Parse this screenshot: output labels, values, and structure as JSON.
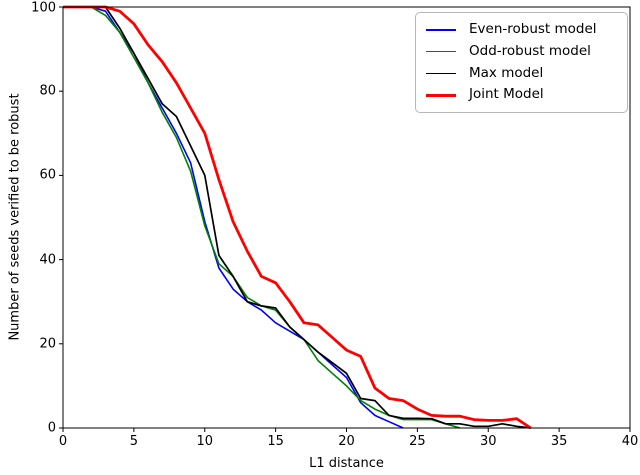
{
  "chart_data": {
    "type": "line",
    "title": "",
    "xlabel": "L1 distance",
    "ylabel": "Number of seeds verified to be robust",
    "xlim": [
      0,
      40
    ],
    "ylim": [
      0,
      100
    ],
    "xticks": [
      0,
      5,
      10,
      15,
      20,
      25,
      30,
      35,
      40
    ],
    "yticks": [
      0,
      20,
      40,
      60,
      80,
      100
    ],
    "grid": false,
    "legend_position": "upper right",
    "axis_color": "#000000",
    "background_color": "#ffffff",
    "series": [
      {
        "name": "Even-robust model",
        "color": "#0000ff",
        "line_width": 1.6,
        "points": [
          [
            0,
            100
          ],
          [
            1,
            100
          ],
          [
            2,
            100
          ],
          [
            3,
            99
          ],
          [
            4,
            94
          ],
          [
            5,
            89
          ],
          [
            6,
            82
          ],
          [
            7,
            76
          ],
          [
            8,
            70
          ],
          [
            9,
            63
          ],
          [
            10,
            49
          ],
          [
            11,
            38
          ],
          [
            12,
            33
          ],
          [
            13,
            30
          ],
          [
            14,
            28
          ],
          [
            15,
            25
          ],
          [
            16,
            23
          ],
          [
            17,
            21
          ],
          [
            18,
            18
          ],
          [
            19,
            15
          ],
          [
            20,
            12
          ],
          [
            21,
            6
          ],
          [
            22,
            3
          ],
          [
            23,
            1.5
          ],
          [
            24,
            0
          ]
        ]
      },
      {
        "name": "Odd-robust model",
        "color": "#008000",
        "line_width": 1.6,
        "points": [
          [
            0,
            100
          ],
          [
            1,
            100
          ],
          [
            2,
            100
          ],
          [
            3,
            98
          ],
          [
            4,
            94
          ],
          [
            5,
            88
          ],
          [
            6,
            82
          ],
          [
            7,
            75
          ],
          [
            8,
            69
          ],
          [
            9,
            61
          ],
          [
            10,
            48
          ],
          [
            11,
            39
          ],
          [
            12,
            36
          ],
          [
            13,
            31
          ],
          [
            14,
            29
          ],
          [
            15,
            28
          ],
          [
            16,
            24
          ],
          [
            17,
            21
          ],
          [
            18,
            16
          ],
          [
            19,
            13
          ],
          [
            20,
            10
          ],
          [
            21,
            6.5
          ],
          [
            22,
            4.5
          ],
          [
            23,
            3
          ],
          [
            24,
            2
          ],
          [
            25,
            2
          ],
          [
            26,
            2
          ],
          [
            27,
            1
          ],
          [
            28,
            0
          ]
        ]
      },
      {
        "name": "Max model",
        "color": "#000000",
        "line_width": 1.7,
        "points": [
          [
            0,
            100
          ],
          [
            1,
            100
          ],
          [
            2,
            100
          ],
          [
            3,
            100
          ],
          [
            4,
            95
          ],
          [
            5,
            89
          ],
          [
            6,
            83
          ],
          [
            7,
            77
          ],
          [
            8,
            74
          ],
          [
            9,
            67
          ],
          [
            10,
            60
          ],
          [
            11,
            41
          ],
          [
            12,
            36
          ],
          [
            13,
            30
          ],
          [
            14,
            29
          ],
          [
            15,
            28.5
          ],
          [
            16,
            24
          ],
          [
            17,
            21
          ],
          [
            18,
            18
          ],
          [
            19,
            15.5
          ],
          [
            20,
            13
          ],
          [
            21,
            7
          ],
          [
            22,
            6.5
          ],
          [
            23,
            3
          ],
          [
            24,
            2.3
          ],
          [
            25,
            2.3
          ],
          [
            26,
            2.2
          ],
          [
            27,
            1
          ],
          [
            28,
            1
          ],
          [
            29,
            0.4
          ],
          [
            30,
            0.4
          ],
          [
            31,
            1
          ],
          [
            32,
            0.4
          ],
          [
            33,
            0
          ]
        ]
      },
      {
        "name": "Joint Model",
        "color": "#ff0000",
        "line_width": 2.8,
        "points": [
          [
            0,
            100
          ],
          [
            1,
            100
          ],
          [
            2,
            100
          ],
          [
            3,
            100
          ],
          [
            4,
            99
          ],
          [
            5,
            96
          ],
          [
            6,
            91
          ],
          [
            7,
            87
          ],
          [
            8,
            82
          ],
          [
            9,
            76
          ],
          [
            10,
            70
          ],
          [
            11,
            59
          ],
          [
            12,
            49
          ],
          [
            13,
            42
          ],
          [
            14,
            36
          ],
          [
            15,
            34.5
          ],
          [
            16,
            30
          ],
          [
            17,
            25
          ],
          [
            18,
            24.5
          ],
          [
            19,
            21.5
          ],
          [
            20,
            18.5
          ],
          [
            21,
            17
          ],
          [
            22,
            9.5
          ],
          [
            23,
            7
          ],
          [
            24,
            6.5
          ],
          [
            25,
            4.5
          ],
          [
            26,
            3
          ],
          [
            27,
            2.8
          ],
          [
            28,
            2.8
          ],
          [
            29,
            2
          ],
          [
            30,
            1.8
          ],
          [
            31,
            1.8
          ],
          [
            32,
            2.2
          ],
          [
            33,
            0
          ]
        ]
      }
    ]
  }
}
